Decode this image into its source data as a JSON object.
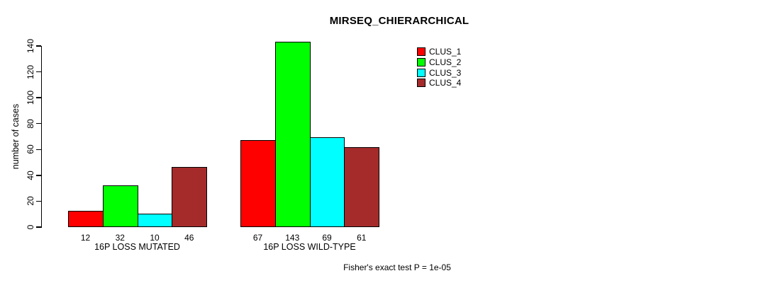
{
  "chart_data": {
    "type": "bar",
    "title": "MIRSEQ_CHIERARCHICAL",
    "ylabel": "number of cases",
    "xlabel": "",
    "categories": [
      "16P LOSS MUTATED",
      "16P LOSS WILD-TYPE"
    ],
    "series": [
      {
        "name": "CLUS_1",
        "color": "#FF0000",
        "values": [
          12,
          67
        ]
      },
      {
        "name": "CLUS_2",
        "color": "#00FF00",
        "values": [
          32,
          143
        ]
      },
      {
        "name": "CLUS_3",
        "color": "#00FFFF",
        "values": [
          10,
          69
        ]
      },
      {
        "name": "CLUS_4",
        "color": "#A52A2A",
        "values": [
          46,
          61
        ]
      }
    ],
    "ylim": [
      0,
      140
    ],
    "yticks": [
      0,
      20,
      40,
      60,
      80,
      100,
      120,
      140
    ],
    "bar_value_labels_shown": true,
    "grid": false,
    "legend_position": "top-right",
    "annotation": "Fisher's exact test P = 1e-05"
  },
  "colors": {
    "background": "#FFFFFF",
    "axis": "#000000",
    "text": "#000000"
  }
}
